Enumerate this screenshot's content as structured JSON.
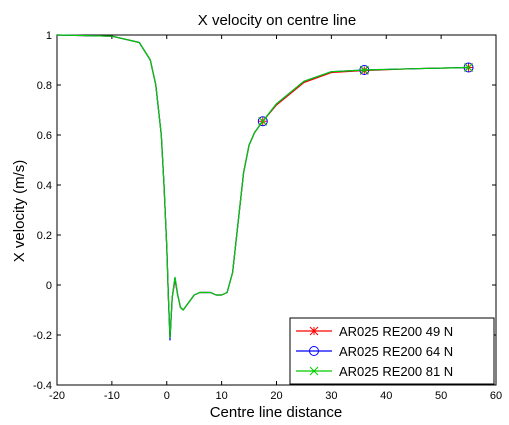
{
  "chart_data": {
    "type": "line",
    "title": "X velocity on centre line",
    "xlabel": "Centre line distance",
    "ylabel": "X velocity (m/s)",
    "xlim": [
      -20,
      60
    ],
    "ylim": [
      -0.4,
      1
    ],
    "xticks": [
      -20,
      -10,
      0,
      10,
      20,
      30,
      40,
      50,
      60
    ],
    "yticks": [
      -0.4,
      -0.2,
      0,
      0.2,
      0.4,
      0.6,
      0.8,
      1
    ],
    "grid": false,
    "legend_position": "bottom-right",
    "series": [
      {
        "name": "AR025 RE200 49 N",
        "color": "#ff0000",
        "marker": "asterisk",
        "x": [
          -20,
          -10,
          -5,
          -3,
          -2,
          -1,
          -0.5,
          0,
          0.3,
          0.6,
          1,
          1.5,
          2,
          2.5,
          3,
          4,
          5,
          6,
          7,
          8,
          9,
          10,
          11,
          12,
          13,
          14,
          15,
          16,
          17.5,
          20,
          25,
          30,
          36,
          45,
          55
        ],
        "y": [
          1.0,
          0.995,
          0.97,
          0.9,
          0.8,
          0.6,
          0.4,
          0.15,
          -0.05,
          -0.21,
          -0.05,
          0.02,
          -0.04,
          -0.09,
          -0.1,
          -0.07,
          -0.04,
          -0.03,
          -0.03,
          -0.03,
          -0.04,
          -0.04,
          -0.03,
          0.05,
          0.25,
          0.45,
          0.56,
          0.61,
          0.655,
          0.72,
          0.81,
          0.85,
          0.858,
          0.865,
          0.87
        ],
        "marker_x": [
          17.5,
          36,
          55
        ],
        "marker_y": [
          0.655,
          0.858,
          0.87
        ]
      },
      {
        "name": "AR025 RE200 64 N",
        "color": "#0000ff",
        "marker": "circle",
        "x": [
          -20,
          -10,
          -5,
          -3,
          -2,
          -1,
          -0.5,
          0,
          0.3,
          0.6,
          1,
          1.5,
          2,
          2.5,
          3,
          4,
          5,
          6,
          7,
          8,
          9,
          10,
          11,
          12,
          13,
          14,
          15,
          16,
          17.5,
          20,
          25,
          30,
          36,
          45,
          55
        ],
        "y": [
          1.0,
          0.995,
          0.97,
          0.9,
          0.8,
          0.6,
          0.4,
          0.15,
          -0.05,
          -0.22,
          -0.05,
          0.03,
          -0.04,
          -0.09,
          -0.1,
          -0.07,
          -0.04,
          -0.03,
          -0.03,
          -0.03,
          -0.04,
          -0.04,
          -0.03,
          0.05,
          0.25,
          0.45,
          0.56,
          0.61,
          0.655,
          0.725,
          0.815,
          0.853,
          0.86,
          0.865,
          0.87
        ],
        "marker_x": [
          17.5,
          36,
          55
        ],
        "marker_y": [
          0.655,
          0.86,
          0.87
        ]
      },
      {
        "name": "AR025 RE200 81 N",
        "color": "#00cc00",
        "marker": "x",
        "x": [
          -20,
          -10,
          -5,
          -3,
          -2,
          -1,
          -0.5,
          0,
          0.3,
          0.6,
          1,
          1.5,
          2,
          2.5,
          3,
          4,
          5,
          6,
          7,
          8,
          9,
          10,
          11,
          12,
          13,
          14,
          15,
          16,
          17.5,
          20,
          25,
          30,
          36,
          45,
          55
        ],
        "y": [
          1.0,
          0.995,
          0.97,
          0.9,
          0.8,
          0.6,
          0.4,
          0.15,
          -0.05,
          -0.21,
          -0.05,
          0.03,
          -0.04,
          -0.09,
          -0.1,
          -0.07,
          -0.04,
          -0.03,
          -0.03,
          -0.03,
          -0.04,
          -0.04,
          -0.03,
          0.05,
          0.25,
          0.45,
          0.56,
          0.61,
          0.655,
          0.725,
          0.815,
          0.853,
          0.86,
          0.865,
          0.87
        ],
        "marker_x": [
          17.5,
          36,
          55
        ],
        "marker_y": [
          0.655,
          0.86,
          0.87
        ]
      }
    ]
  }
}
